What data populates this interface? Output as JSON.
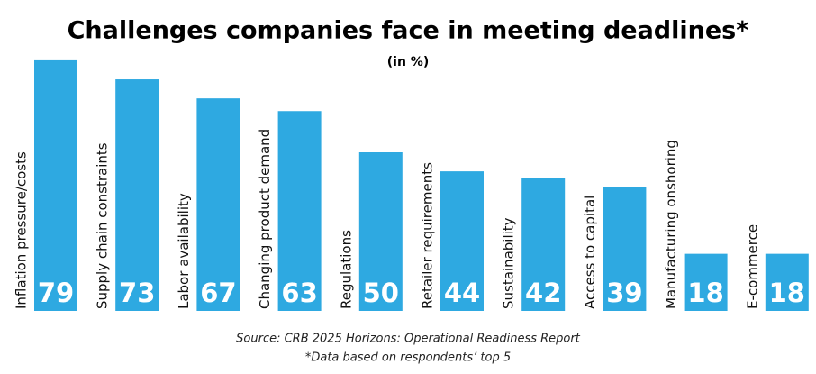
{
  "chart_data": {
    "type": "bar",
    "title": "Challenges companies face in meeting deadlines*",
    "subtitle": "(in %)",
    "categories": [
      "Inflation pressure/costs",
      "Supply chain constraints",
      "Labor availability",
      "Changing product demand",
      "Regulations",
      "Retailer requirements",
      "Sustainability",
      "Access to capital",
      "Manufacturing onshoring",
      "E-commerce"
    ],
    "values": [
      79,
      73,
      67,
      63,
      50,
      44,
      42,
      39,
      18,
      18
    ],
    "color": "#2ea9e1",
    "source": "Source: CRB 2025 Horizons: Operational Readiness Report",
    "note": "*Data based on respondents’ top 5"
  }
}
